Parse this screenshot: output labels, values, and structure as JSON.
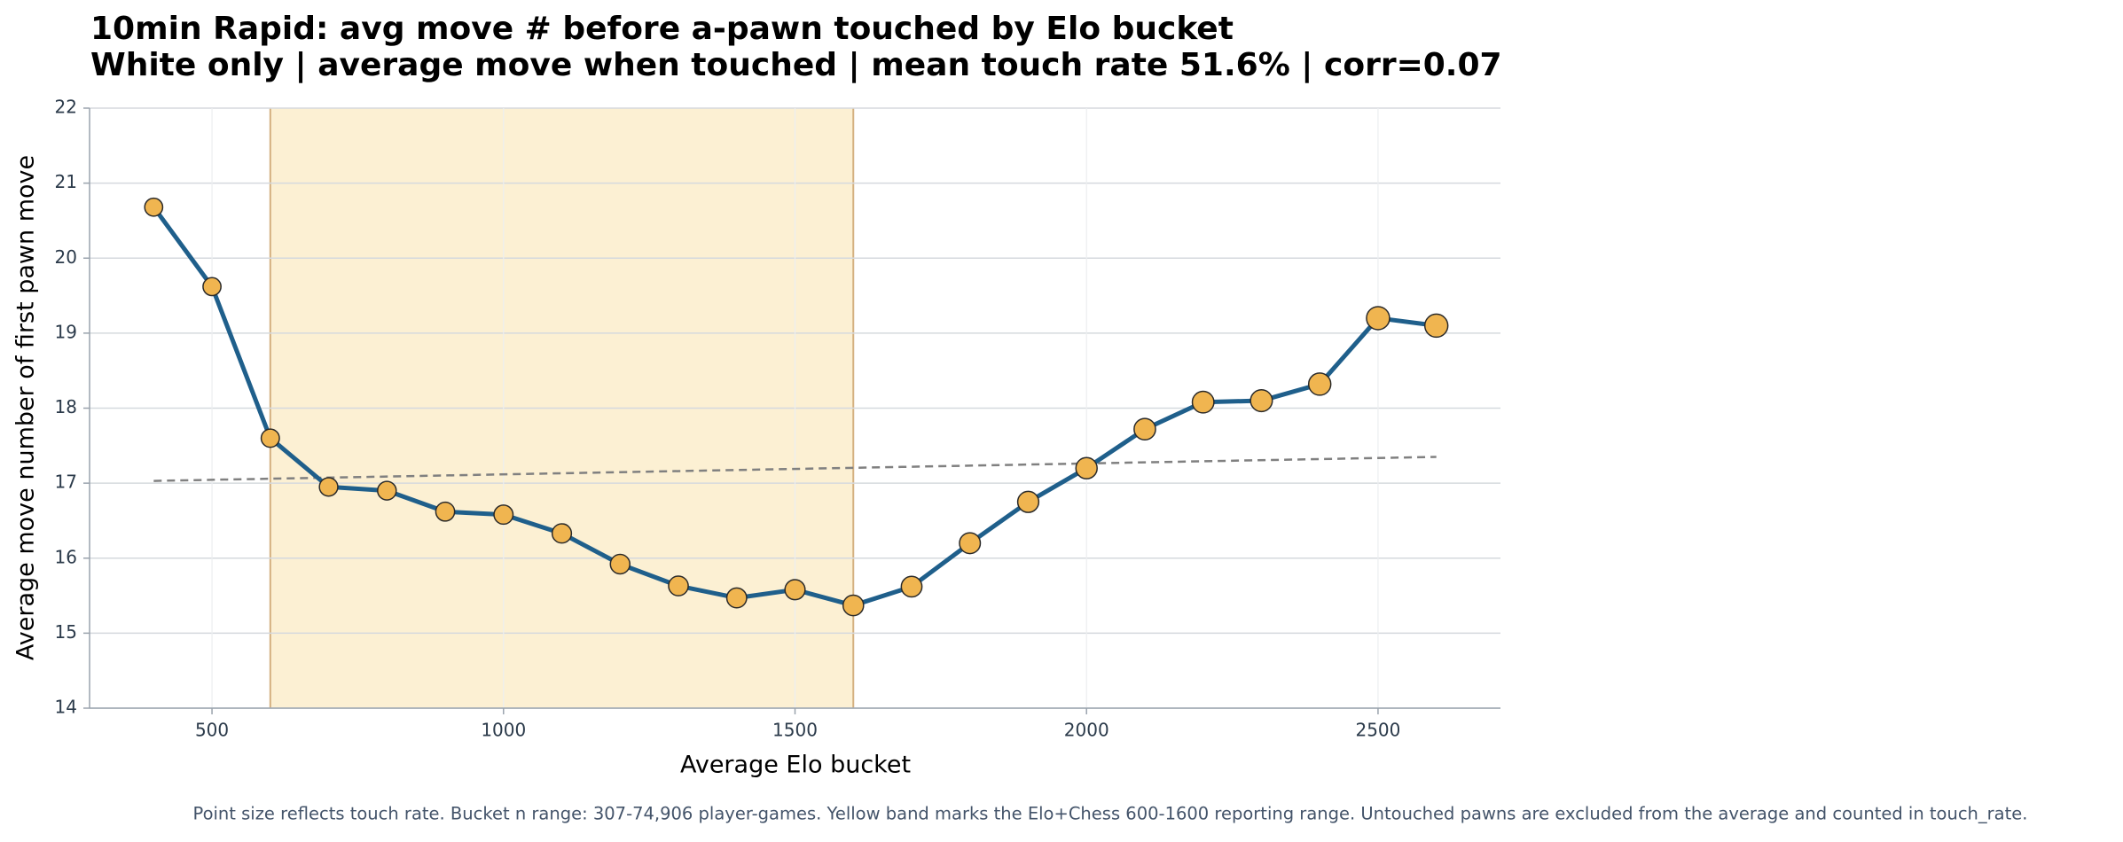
{
  "chart_data": {
    "type": "line",
    "title": "10min Rapid: avg move # before a-pawn touched by Elo bucket",
    "subtitle": "White only | average move when touched | mean touch rate 51.6% | corr=0.07",
    "x_label": "Average Elo bucket",
    "y_label": "Average move number of first pawn move",
    "footnote": "Point size reflects touch rate. Bucket n range: 307-74,906 player-games. Yellow band marks the Elo+Chess 600-1600 reporting range. Untouched pawns are excluded from the average and counted in touch_rate.",
    "x": [
      400,
      500,
      600,
      700,
      800,
      900,
      1000,
      1100,
      1200,
      1300,
      1400,
      1500,
      1600,
      1700,
      1800,
      1900,
      2000,
      2100,
      2200,
      2300,
      2400,
      2500,
      2600
    ],
    "values": [
      20.68,
      19.62,
      17.6,
      16.95,
      16.9,
      16.62,
      16.58,
      16.33,
      15.92,
      15.63,
      15.47,
      15.58,
      15.37,
      15.62,
      16.2,
      16.75,
      17.2,
      17.72,
      18.08,
      18.1,
      18.32,
      19.2,
      19.1
    ],
    "sizes": [
      40,
      40,
      41,
      42,
      43,
      44,
      45,
      46,
      47,
      48,
      49,
      50,
      52,
      53,
      54,
      55,
      56,
      57,
      58,
      59,
      61,
      66,
      66
    ],
    "color": "#1f5f8b",
    "marker_color": "#f0b550",
    "trend_x": [
      400,
      2600
    ],
    "trend_values": [
      17.03,
      17.35
    ],
    "trend_color": "#808080",
    "band": [
      600,
      1600
    ],
    "band_color": "#fcf0d3",
    "xlim": [
      290,
      2710
    ],
    "ylim": [
      14,
      22
    ],
    "xticks": [
      500,
      1000,
      1500,
      2000,
      2500
    ],
    "yticks": [
      14,
      15,
      16,
      17,
      18,
      19,
      20,
      21,
      22
    ],
    "grid": true
  }
}
